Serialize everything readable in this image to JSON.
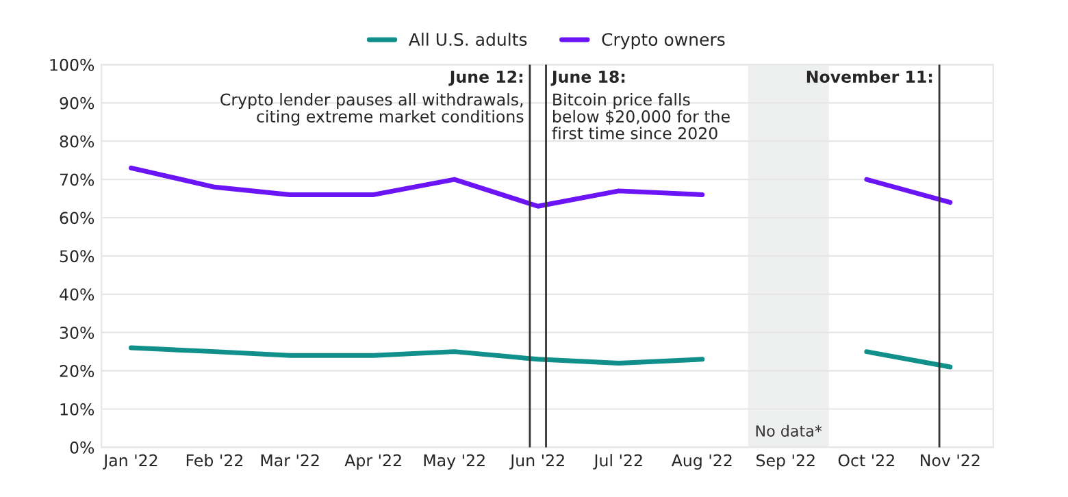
{
  "chart_data": {
    "type": "line",
    "x": [
      "2022-01-15",
      "2022-02-15",
      "2022-03-15",
      "2022-04-15",
      "2022-05-15",
      "2022-06-15",
      "2022-07-15",
      "2022-08-15",
      "2022-09-15",
      "2022-10-15",
      "2022-11-15"
    ],
    "series": [
      {
        "name": "All U.S. adults",
        "color": "#11908b",
        "values": [
          26,
          25,
          24,
          24,
          25,
          23,
          22,
          23,
          null,
          25,
          21
        ]
      },
      {
        "name": "Crypto owners",
        "color": "#6b14f5",
        "values": [
          73,
          68,
          66,
          66,
          70,
          63,
          67,
          66,
          null,
          70,
          64
        ]
      }
    ],
    "xlim": [
      "2022-01-04",
      "2022-12-01"
    ],
    "xticks": [
      {
        "value": "2022-01-15",
        "label": "Jan '22"
      },
      {
        "value": "2022-02-15",
        "label": "Feb '22"
      },
      {
        "value": "2022-03-15",
        "label": "Mar '22"
      },
      {
        "value": "2022-04-15",
        "label": "Apr '22"
      },
      {
        "value": "2022-05-15",
        "label": "May '22"
      },
      {
        "value": "2022-06-15",
        "label": "Jun '22"
      },
      {
        "value": "2022-07-15",
        "label": "Jul '22"
      },
      {
        "value": "2022-08-15",
        "label": "Aug '22"
      },
      {
        "value": "2022-09-15",
        "label": "Sep '22"
      },
      {
        "value": "2022-10-15",
        "label": "Oct '22"
      },
      {
        "value": "2022-11-15",
        "label": "Nov '22"
      }
    ],
    "ylim": [
      0,
      100
    ],
    "yticks": [
      {
        "value": 0,
        "label": "0%"
      },
      {
        "value": 10,
        "label": "10%"
      },
      {
        "value": 20,
        "label": "20%"
      },
      {
        "value": 30,
        "label": "30%"
      },
      {
        "value": 40,
        "label": "40%"
      },
      {
        "value": 50,
        "label": "50%"
      },
      {
        "value": 60,
        "label": "60%"
      },
      {
        "value": 70,
        "label": "70%"
      },
      {
        "value": 80,
        "label": "80%"
      },
      {
        "value": 90,
        "label": "90%"
      },
      {
        "value": 100,
        "label": "100%"
      }
    ],
    "ref_lines": [
      {
        "axis": "x",
        "value": "2022-06-12",
        "label": "June 12:\nCrypto lender pauses all withdrawals,\nciting extreme market conditions",
        "color": "#333333"
      },
      {
        "axis": "x",
        "value": "2022-06-18",
        "label": "June 18:\nBitcoin price falls\nbelow $20,000 for the\nfirst time since 2020",
        "color": "#333333"
      },
      {
        "axis": "x",
        "value": "2022-11-11",
        "label": "November 11:",
        "color": "#333333"
      }
    ],
    "bands": [
      {
        "axis": "x",
        "from": "2022-09-01",
        "to": "2022-10-01",
        "label": "No data*",
        "color": "#eef0ef"
      }
    ],
    "grid": "y",
    "legend": "top",
    "marker": "none",
    "line_style": "solid"
  }
}
